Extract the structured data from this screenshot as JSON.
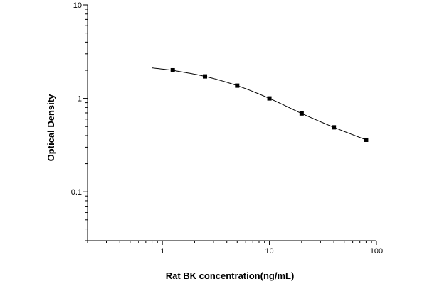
{
  "chart_data": {
    "type": "scatter",
    "title": "",
    "xlabel": "Rat BK concentration(ng/mL)",
    "ylabel": "Optical Density",
    "xscale": "log",
    "yscale": "log",
    "xlim": [
      0.2,
      100
    ],
    "ylim": [
      0.03,
      10
    ],
    "grid": false,
    "legend": "none",
    "x_ticks": [
      {
        "value": 1,
        "label": "1"
      },
      {
        "value": 10,
        "label": "10"
      },
      {
        "value": 100,
        "label": "100"
      }
    ],
    "y_ticks": [
      {
        "value": 0.1,
        "label": "0.1"
      },
      {
        "value": 1,
        "label": "1"
      },
      {
        "value": 10,
        "label": "10"
      }
    ],
    "series": [
      {
        "points": [
          {
            "x": 1.25,
            "y": 2.0
          },
          {
            "x": 2.5,
            "y": 1.72
          },
          {
            "x": 5,
            "y": 1.37
          },
          {
            "x": 10,
            "y": 1.0
          },
          {
            "x": 20,
            "y": 0.69
          },
          {
            "x": 40,
            "y": 0.49
          },
          {
            "x": 80,
            "y": 0.36
          }
        ],
        "marker": "square",
        "color": "#000000"
      }
    ],
    "fit_curve": {
      "model": "four-parameter logistic",
      "x_range": [
        0.8,
        80
      ],
      "color": "#000000"
    }
  }
}
